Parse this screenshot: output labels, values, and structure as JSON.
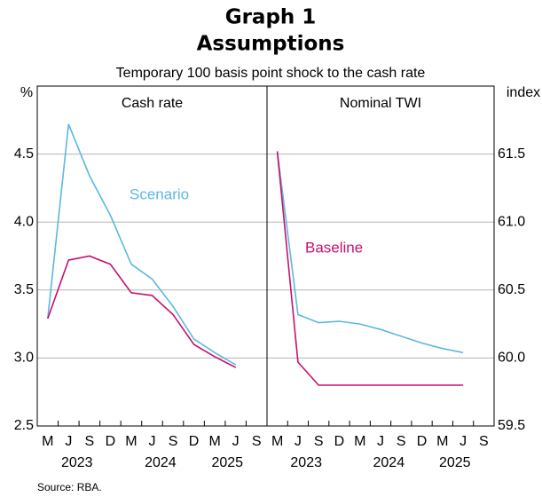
{
  "title": "Graph 1",
  "subtitle": "Assumptions",
  "note": "Temporary 100 basis point shock to the cash rate",
  "source": "Source:   RBA.",
  "chart_data": [
    {
      "type": "line",
      "title": "Cash rate",
      "y_label": "%",
      "categories": [
        "M",
        "J",
        "S",
        "D",
        "M",
        "J",
        "S",
        "D",
        "M",
        "J",
        "S"
      ],
      "years": [
        "2023",
        "2024",
        "2025"
      ],
      "ylim": [
        2.5,
        5.0
      ],
      "yticks": [
        2.5,
        {
          "value": 3,
          "label": "3.0"
        },
        3.5,
        {
          "value": 4,
          "label": "4.0"
        },
        4.5
      ],
      "grid": true,
      "series": [
        {
          "name": "Scenario",
          "color": "#5bb8e0",
          "values": [
            3.29,
            4.72,
            4.34,
            4.05,
            3.69,
            3.58,
            3.38,
            3.14,
            3.04,
            2.95,
            null
          ]
        },
        {
          "color": "#c8106e",
          "values": [
            3.29,
            3.72,
            3.75,
            3.69,
            3.48,
            3.46,
            3.32,
            3.1,
            3.01,
            2.93,
            null
          ]
        }
      ]
    },
    {
      "type": "line",
      "title": "Nominal TWI",
      "y_label": "index",
      "categories": [
        "M",
        "J",
        "S",
        "D",
        "M",
        "J",
        "S",
        "D",
        "M",
        "J",
        "S"
      ],
      "years": [
        "2023",
        "2024",
        "2025"
      ],
      "ylim": [
        59.5,
        62.0
      ],
      "yticks": [
        59.5,
        {
          "value": 60,
          "label": "60.0"
        },
        60.5,
        {
          "value": 61,
          "label": "61.0"
        },
        61.5
      ],
      "grid": true,
      "series": [
        {
          "color": "#5bb8e0",
          "values": [
            61.52,
            60.32,
            60.26,
            60.27,
            60.25,
            60.21,
            60.16,
            60.11,
            60.07,
            60.04,
            null
          ]
        },
        {
          "name": "Baseline",
          "color": "#c8106e",
          "values": [
            61.52,
            59.97,
            59.8,
            59.8,
            59.8,
            59.8,
            59.8,
            59.8,
            59.8,
            59.8,
            null
          ]
        }
      ]
    }
  ]
}
